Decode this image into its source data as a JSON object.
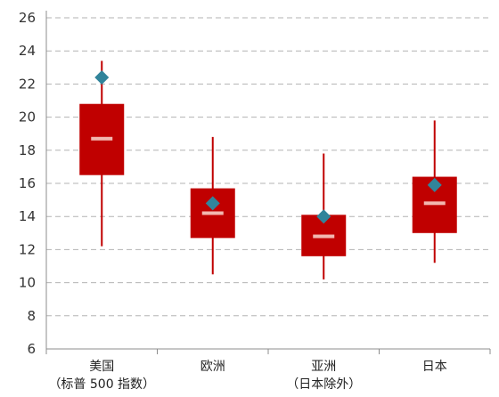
{
  "chart_data": {
    "type": "box",
    "categories": [
      {
        "name": "美国",
        "sub": "（标普 500 指数）"
      },
      {
        "name": "欧洲",
        "sub": ""
      },
      {
        "name": "亚洲",
        "sub": "（日本除外）"
      },
      {
        "name": "日本",
        "sub": ""
      }
    ],
    "series": [
      {
        "category": "美国",
        "min": 12.2,
        "q1": 16.5,
        "median": 18.7,
        "q3": 20.8,
        "max": 23.4,
        "current": 22.4
      },
      {
        "category": "欧洲",
        "min": 10.5,
        "q1": 12.7,
        "median": 14.2,
        "q3": 15.7,
        "max": 18.8,
        "current": 14.8
      },
      {
        "category": "亚洲",
        "min": 10.2,
        "q1": 11.6,
        "median": 12.8,
        "q3": 14.1,
        "max": 17.8,
        "current": 14.0
      },
      {
        "category": "日本",
        "min": 11.2,
        "q1": 13.0,
        "median": 14.8,
        "q3": 16.4,
        "max": 19.8,
        "current": 15.9
      }
    ],
    "yticks": [
      6,
      8,
      10,
      12,
      14,
      16,
      18,
      20,
      22,
      24,
      26
    ],
    "ylim": [
      6,
      26
    ],
    "grid": true,
    "colors": {
      "box": "#c00000",
      "whisker": "#c00000",
      "median": "#f2b8b0",
      "marker": "#31849b",
      "grid": "#b3b3b3",
      "axis": "#8c8c8c"
    }
  }
}
